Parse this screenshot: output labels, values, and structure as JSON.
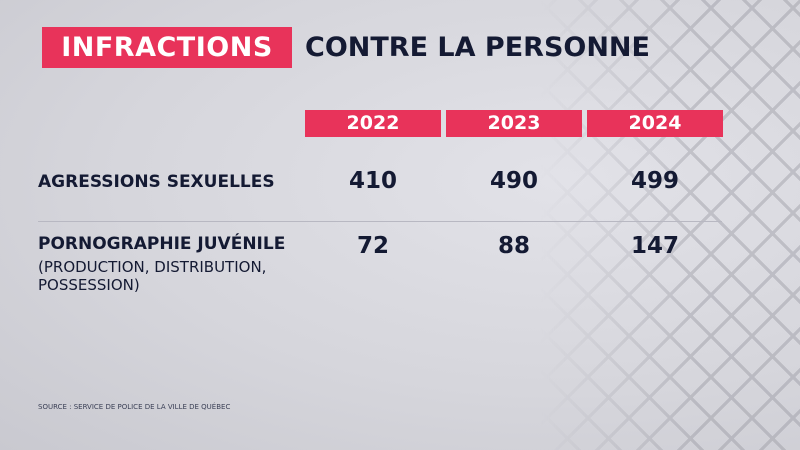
{
  "title": {
    "highlight": "INFRACTIONS",
    "rest": "CONTRE LA PERSONNE"
  },
  "colors": {
    "accent": "#e8335a",
    "text": "#141a33"
  },
  "chart_data": {
    "type": "table",
    "title": "INFRACTIONS CONTRE LA PERSONNE",
    "columns": [
      "2022",
      "2023",
      "2024"
    ],
    "rows": [
      {
        "label": "AGRESSIONS SEXUELLES",
        "sublabel": [],
        "values": [
          "410",
          "490",
          "499"
        ]
      },
      {
        "label": "PORNOGRAPHIE JUVÉNILE",
        "sublabel": [
          "(PRODUCTION, DISTRIBUTION,",
          "POSSESSION)"
        ],
        "values": [
          "72",
          "88",
          "147"
        ]
      }
    ]
  },
  "source": "SOURCE : SERVICE DE POLICE DE LA VILLE DE QUÉBEC"
}
